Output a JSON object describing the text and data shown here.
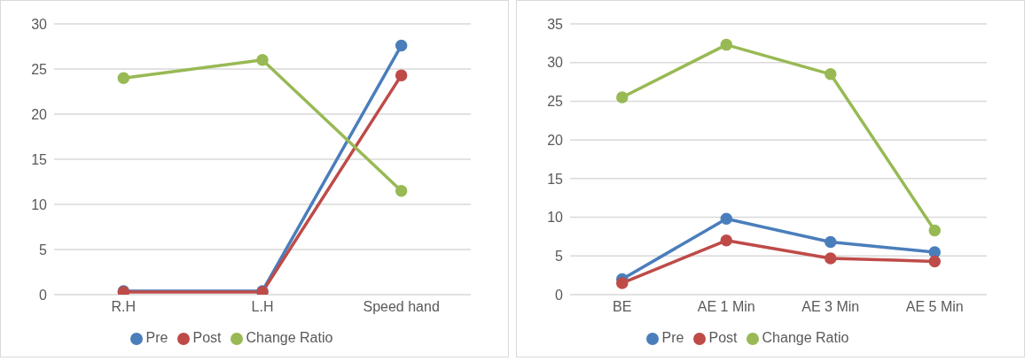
{
  "chart_data": [
    {
      "type": "line",
      "categories": [
        "R.H",
        "L.H",
        "Speed hand"
      ],
      "ylim": [
        0,
        30
      ],
      "yticks": [
        0,
        5,
        10,
        15,
        20,
        25,
        30
      ],
      "grid": "y",
      "legend": "bottom",
      "marker": "circle",
      "series": [
        {
          "name": "Pre",
          "color": "#4a7ebb",
          "values": [
            0.4,
            0.4,
            27.6
          ]
        },
        {
          "name": "Post",
          "color": "#be4b48",
          "values": [
            0.3,
            0.3,
            24.3
          ]
        },
        {
          "name": "Change Ratio",
          "color": "#98b954",
          "values": [
            24.0,
            26.0,
            11.5
          ]
        }
      ]
    },
    {
      "type": "line",
      "categories": [
        "BE",
        "AE 1 Min",
        "AE 3 Min",
        "AE 5 Min"
      ],
      "ylim": [
        0,
        35
      ],
      "yticks": [
        0,
        5,
        10,
        15,
        20,
        25,
        30,
        35
      ],
      "grid": "y",
      "legend": "bottom",
      "marker": "circle",
      "series": [
        {
          "name": "Pre",
          "color": "#4a7ebb",
          "values": [
            2.0,
            9.8,
            6.8,
            5.5
          ]
        },
        {
          "name": "Post",
          "color": "#be4b48",
          "values": [
            1.5,
            7.0,
            4.7,
            4.3
          ]
        },
        {
          "name": "Change Ratio",
          "color": "#98b954",
          "values": [
            25.5,
            32.3,
            28.5,
            8.3
          ]
        }
      ]
    }
  ]
}
